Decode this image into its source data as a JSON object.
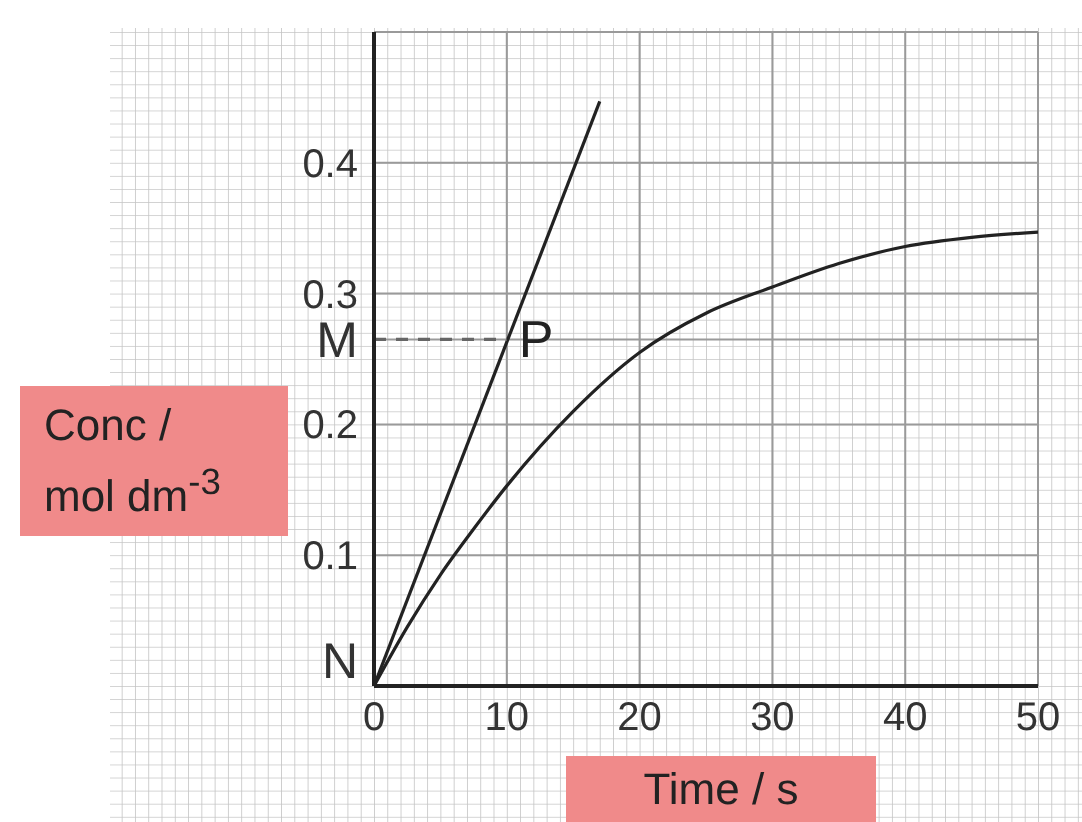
{
  "chart_data": {
    "type": "line",
    "xlabel": "Time / s",
    "ylabel": "Conc / mol dm$^{-3}$",
    "xlim": [
      0,
      50
    ],
    "xticks": [
      0,
      10,
      20,
      30,
      40,
      50
    ],
    "ylim": [
      0,
      0.5
    ],
    "yticks": [
      {
        "value": 0,
        "label": "N"
      },
      0.1,
      0.2,
      {
        "value": 0.265,
        "label": "M"
      },
      0.3,
      0.4
    ],
    "grid": true,
    "marker": "none",
    "series": [
      {
        "color": "#222222",
        "x": [
          0,
          2.5,
          5,
          7.5,
          10,
          15,
          20,
          25,
          30,
          35,
          40,
          45,
          50
        ],
        "values": [
          0,
          0.045,
          0.085,
          0.12,
          0.153,
          0.21,
          0.255,
          0.285,
          0.305,
          0.323,
          0.336,
          0.343,
          0.347
        ]
      },
      {
        "color": "#222222",
        "x": [
          0,
          17
        ],
        "values": [
          0,
          0.447
        ]
      },
      {
        "color": "#666666",
        "line_style": "dashed",
        "x": [
          0,
          10
        ],
        "values": [
          0.265,
          0.265
        ]
      }
    ],
    "annotations": [
      {
        "text": "P",
        "x": 10,
        "y": 0.265
      }
    ]
  }
}
